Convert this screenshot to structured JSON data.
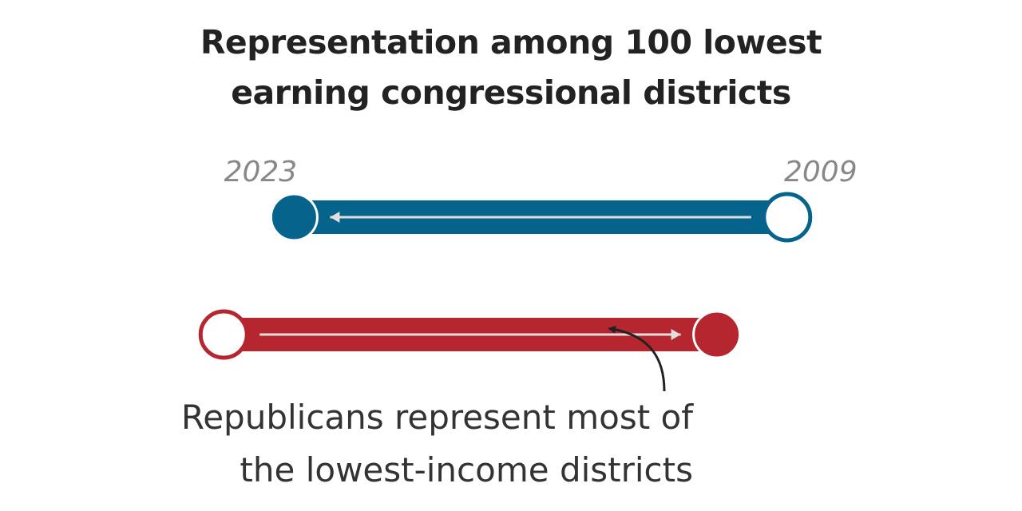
{
  "chart_data": {
    "type": "dumbbell",
    "title_lines": [
      "Representation among 100 lowest",
      "earning congressional districts"
    ],
    "year_labels": {
      "start": "2009",
      "end": "2023"
    },
    "series": [
      {
        "key": "dem",
        "start": 78,
        "end": 29,
        "color": "#05638c"
      },
      {
        "key": "rep",
        "start": 22,
        "end": 71,
        "color": "#b5262e"
      }
    ],
    "xlim": [
      0,
      100
    ],
    "annotation": {
      "lines": [
        "Republicans represent most of",
        "the lowest-income districts"
      ]
    },
    "colors": {
      "arrow": "#e3dede",
      "year_label": "#888888",
      "annotation_text": "#333333",
      "annotation_arrow": "#222222",
      "open_fill": "#ffffff"
    }
  }
}
